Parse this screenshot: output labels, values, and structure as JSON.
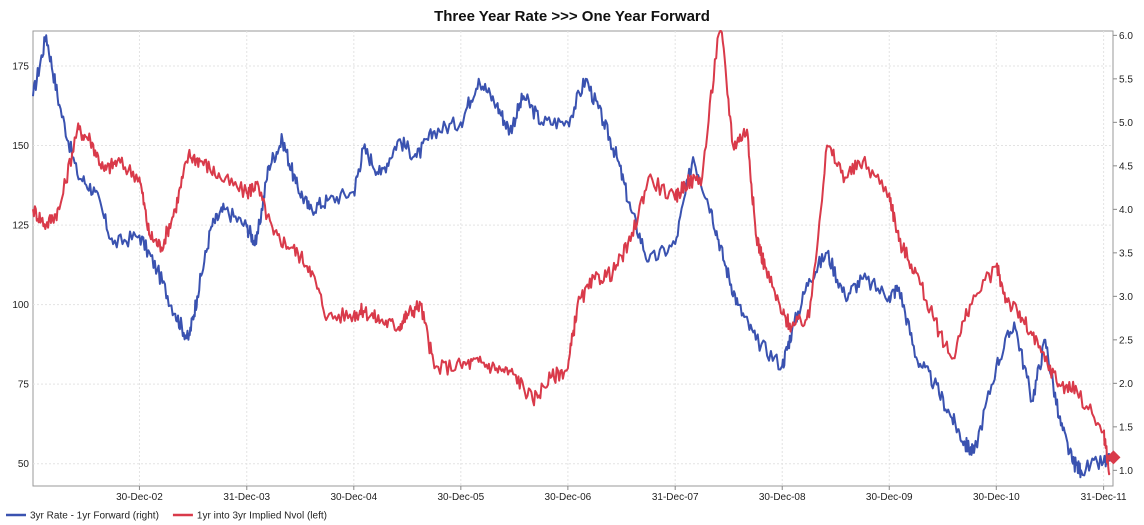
{
  "chart_data": {
    "type": "line",
    "title": "Three Year Rate  >>> One Year Forward",
    "x_ticks": [
      "30-Dec-02",
      "31-Dec-03",
      "30-Dec-04",
      "30-Dec-05",
      "30-Dec-06",
      "31-Dec-07",
      "30-Dec-08",
      "30-Dec-09",
      "30-Dec-10",
      "31-Dec-11"
    ],
    "x_range": [
      "2002-01-01",
      "2012-02-01"
    ],
    "left_axis": {
      "ticks": [
        "175",
        "150",
        "125",
        "100",
        "75",
        "50"
      ],
      "range": [
        43,
        186
      ]
    },
    "right_axis": {
      "ticks": [
        "6.0",
        "5.5",
        "5.0",
        "4.5",
        "4.0",
        "3.5",
        "3.0",
        "2.5",
        "2.0",
        "1.5",
        "1.0"
      ],
      "range": [
        0.82,
        6.05
      ]
    },
    "grid": true,
    "legend_position": "bottom-left",
    "series": [
      {
        "name": "3yr Rate - 1yr Forward (right)",
        "axis": "right",
        "color": "#3a52b0",
        "x": [
          "2002-01-01",
          "2002-02-15",
          "2002-04-01",
          "2002-06-01",
          "2002-08-01",
          "2002-10-01",
          "2002-12-30",
          "2003-03-01",
          "2003-05-01",
          "2003-06-15",
          "2003-07-15",
          "2003-09-01",
          "2003-10-15",
          "2003-12-31",
          "2004-02-01",
          "2004-03-15",
          "2004-05-01",
          "2004-06-15",
          "2004-08-01",
          "2004-10-01",
          "2004-12-30",
          "2005-02-01",
          "2005-04-01",
          "2005-06-01",
          "2005-08-01",
          "2005-10-01",
          "2005-12-30",
          "2006-03-01",
          "2006-05-01",
          "2006-06-15",
          "2006-08-01",
          "2006-10-01",
          "2006-12-30",
          "2007-03-01",
          "2007-05-01",
          "2007-06-15",
          "2007-08-01",
          "2007-10-01",
          "2007-12-31",
          "2008-03-01",
          "2008-05-01",
          "2008-06-15",
          "2008-08-01",
          "2008-10-01",
          "2008-12-30",
          "2009-02-01",
          "2009-04-01",
          "2009-06-01",
          "2009-08-01",
          "2009-10-01",
          "2009-12-30",
          "2010-02-01",
          "2010-04-01",
          "2010-06-01",
          "2010-08-01",
          "2010-09-15",
          "2010-10-15",
          "2010-12-30",
          "2011-03-01",
          "2011-05-01",
          "2011-06-15",
          "2011-08-01",
          "2011-09-15",
          "2011-10-15",
          "2011-12-31",
          "2012-01-20"
        ],
        "y": [
          5.3,
          6.0,
          5.2,
          4.4,
          4.2,
          3.6,
          3.7,
          3.3,
          2.8,
          2.5,
          3.0,
          3.8,
          4.0,
          3.8,
          3.6,
          4.5,
          4.8,
          4.3,
          4.0,
          4.1,
          4.2,
          4.7,
          4.4,
          4.8,
          4.6,
          4.9,
          5.0,
          5.5,
          5.2,
          4.9,
          5.3,
          5.0,
          5.0,
          5.5,
          5.0,
          4.6,
          4.0,
          3.4,
          3.6,
          4.6,
          4.0,
          3.4,
          2.9,
          2.5,
          2.2,
          2.6,
          3.2,
          3.5,
          3.0,
          3.2,
          3.0,
          3.1,
          2.3,
          2.0,
          1.6,
          1.3,
          1.2,
          2.2,
          2.7,
          1.8,
          2.5,
          1.6,
          1.1,
          1.0,
          1.1,
          1.1
        ]
      },
      {
        "name": "1yr into 3yr Implied Nvol (left)",
        "axis": "left",
        "color": "#d93a4a",
        "x": [
          "2002-01-01",
          "2002-02-15",
          "2002-04-01",
          "2002-06-01",
          "2002-07-15",
          "2002-09-01",
          "2002-10-15",
          "2002-12-30",
          "2003-02-01",
          "2003-03-15",
          "2003-05-01",
          "2003-06-15",
          "2003-08-01",
          "2003-10-01",
          "2003-12-31",
          "2004-02-01",
          "2004-04-01",
          "2004-06-01",
          "2004-08-01",
          "2004-10-01",
          "2004-12-30",
          "2005-02-01",
          "2005-04-01",
          "2005-06-01",
          "2005-07-01",
          "2005-08-15",
          "2005-10-01",
          "2005-12-30",
          "2006-03-01",
          "2006-05-01",
          "2006-07-01",
          "2006-09-01",
          "2006-11-01",
          "2006-12-30",
          "2007-02-01",
          "2007-04-01",
          "2007-06-01",
          "2007-08-01",
          "2007-10-01",
          "2007-12-31",
          "2008-02-01",
          "2008-04-01",
          "2008-06-01",
          "2008-07-15",
          "2008-09-01",
          "2008-10-01",
          "2008-11-01",
          "2008-12-30",
          "2009-02-01",
          "2009-04-01",
          "2009-06-01",
          "2009-08-01",
          "2009-10-01",
          "2009-12-30",
          "2010-02-01",
          "2010-04-01",
          "2010-06-01",
          "2010-08-01",
          "2010-10-01",
          "2010-12-30",
          "2011-02-01",
          "2011-04-01",
          "2011-06-01",
          "2011-08-01",
          "2011-10-01",
          "2011-12-31",
          "2012-01-20"
        ],
        "y": [
          130,
          125,
          130,
          155,
          152,
          142,
          145,
          140,
          122,
          118,
          130,
          147,
          145,
          140,
          135,
          138,
          122,
          118,
          112,
          96,
          97,
          98,
          95,
          93,
          97,
          100,
          80,
          81,
          82,
          80,
          78,
          70,
          77,
          80,
          100,
          108,
          110,
          120,
          140,
          133,
          138,
          140,
          190,
          150,
          155,
          122,
          112,
          97,
          93,
          96,
          150,
          140,
          145,
          135,
          120,
          110,
          95,
          83,
          100,
          112,
          102,
          95,
          85,
          75,
          73,
          60,
          47
        ]
      }
    ]
  }
}
